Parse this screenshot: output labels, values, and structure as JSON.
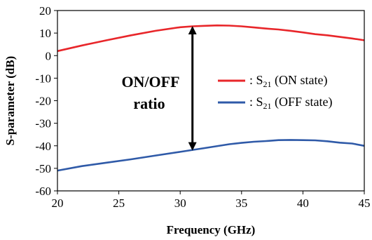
{
  "chart_data": {
    "type": "line",
    "xlabel": "Frequency (GHz)",
    "ylabel": "S-parameter (dB)",
    "xlim": [
      20,
      45
    ],
    "ylim": [
      -60,
      20
    ],
    "xticks": [
      20,
      25,
      30,
      35,
      40,
      45
    ],
    "yticks": [
      20,
      10,
      0,
      -10,
      -20,
      -30,
      -40,
      -50,
      -60
    ],
    "grid": false,
    "legend_position": "center-right",
    "series": [
      {
        "name_prefix": ": S",
        "name_sub": "21",
        "name_suffix": " (ON state)",
        "color": "#e8262a",
        "x": [
          20,
          22,
          24,
          26,
          28,
          30,
          31,
          32,
          33,
          34,
          35,
          36,
          37,
          38,
          39,
          40,
          41,
          42,
          43,
          44,
          45
        ],
        "y": [
          2,
          4.5,
          6.8,
          9,
          11,
          12.6,
          13,
          13.2,
          13.4,
          13.3,
          13,
          12.5,
          12,
          11.6,
          11,
          10.3,
          9.5,
          9,
          8.3,
          7.6,
          6.8
        ]
      },
      {
        "name_prefix": ": S",
        "name_sub": "21",
        "name_suffix": " (OFF state)",
        "color": "#2f5aa8",
        "x": [
          20,
          22,
          24,
          26,
          28,
          30,
          32,
          34,
          35,
          36,
          37,
          38,
          39,
          40,
          41,
          42,
          43,
          44,
          45
        ],
        "y": [
          -51,
          -49,
          -47.5,
          -46,
          -44.3,
          -42.7,
          -41,
          -39.3,
          -38.7,
          -38.2,
          -37.9,
          -37.5,
          -37.4,
          -37.5,
          -37.6,
          -38,
          -38.6,
          -39,
          -40
        ]
      }
    ],
    "annotation": {
      "line1": "ON/OFF",
      "line2": "ratio",
      "arrow_x": 31,
      "arrow_top": 13,
      "arrow_bottom": -42
    }
  }
}
